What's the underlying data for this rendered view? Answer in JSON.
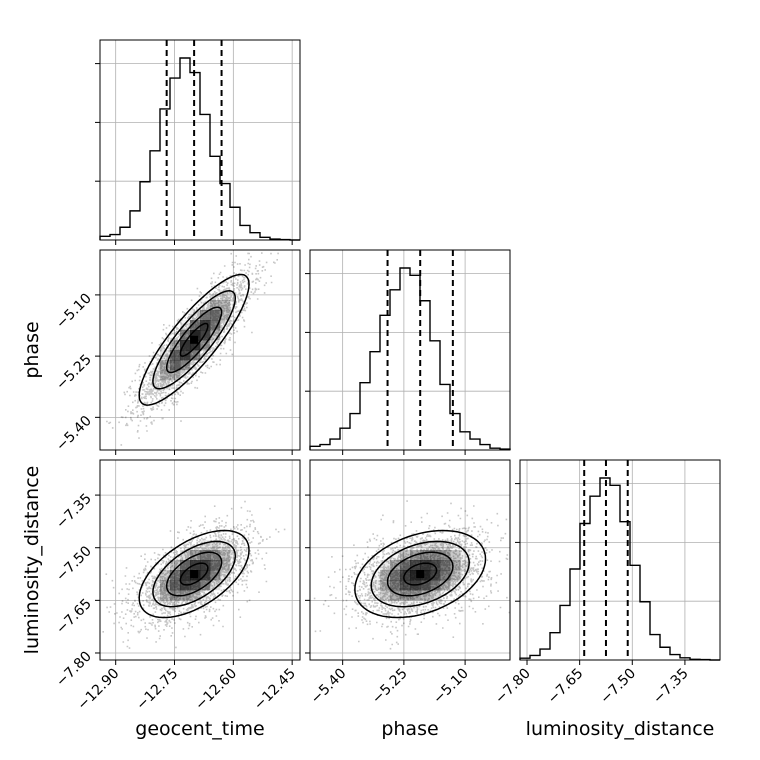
{
  "chart_data": {
    "type": "corner",
    "parameters": [
      "geocent_time",
      "phase",
      "luminosity_distance"
    ],
    "axis_labels": {
      "geocent_time": "geocent_time",
      "phase": "phase",
      "luminosity_distance": "luminosity_distance"
    },
    "ranges": {
      "geocent_time": [
        -12.94,
        -12.43
      ],
      "phase": [
        -5.48,
        -4.99
      ],
      "luminosity_distance": [
        -7.82,
        -7.25
      ]
    },
    "ticks": {
      "geocent_time": [
        -12.9,
        -12.75,
        -12.6,
        -12.45
      ],
      "phase": [
        -5.4,
        -5.25,
        -5.1
      ],
      "luminosity_distance": [
        -7.8,
        -7.65,
        -7.5,
        -7.35
      ]
    },
    "tick_labels": {
      "geocent_time": [
        "−12.90",
        "−12.75",
        "−12.60",
        "−12.45"
      ],
      "phase": [
        "−5.40",
        "−5.25",
        "−5.10"
      ],
      "luminosity_distance": [
        "−7.80",
        "−7.65",
        "−7.50",
        "−7.35"
      ]
    },
    "quantiles": {
      "geocent_time": [
        -12.77,
        -12.7,
        -12.63
      ],
      "phase": [
        -5.29,
        -5.21,
        -5.13
      ],
      "luminosity_distance": [
        -7.637,
        -7.575,
        -7.513
      ]
    },
    "means": {
      "geocent_time": -12.7,
      "phase": -5.21,
      "luminosity_distance": -7.575
    },
    "stds": {
      "geocent_time": 0.07,
      "phase": 0.08,
      "luminosity_distance": 0.062
    },
    "histograms": {
      "geocent_time": [
        0.02,
        0.03,
        0.07,
        0.16,
        0.32,
        0.49,
        0.72,
        0.89,
        1.0,
        0.92,
        0.69,
        0.46,
        0.31,
        0.18,
        0.08,
        0.04,
        0.015,
        0.005,
        0.002,
        0.0
      ],
      "phase": [
        0.02,
        0.03,
        0.06,
        0.12,
        0.2,
        0.37,
        0.54,
        0.74,
        0.88,
        1.0,
        0.96,
        0.82,
        0.6,
        0.36,
        0.2,
        0.1,
        0.06,
        0.03,
        0.01,
        0.005
      ],
      "luminosity_distance": [
        0.01,
        0.025,
        0.06,
        0.15,
        0.3,
        0.5,
        0.75,
        0.9,
        1.0,
        0.96,
        0.76,
        0.52,
        0.32,
        0.14,
        0.07,
        0.03,
        0.012,
        0.004,
        0.002,
        0.0
      ]
    },
    "correlations": {
      "phase|geocent_time": 0.85,
      "luminosity_distance|geocent_time": 0.55,
      "luminosity_distance|phase": 0.35
    },
    "grid": true,
    "colors": {
      "line": "#000000",
      "density": "#000000",
      "grid": "#b0b0b0"
    }
  }
}
